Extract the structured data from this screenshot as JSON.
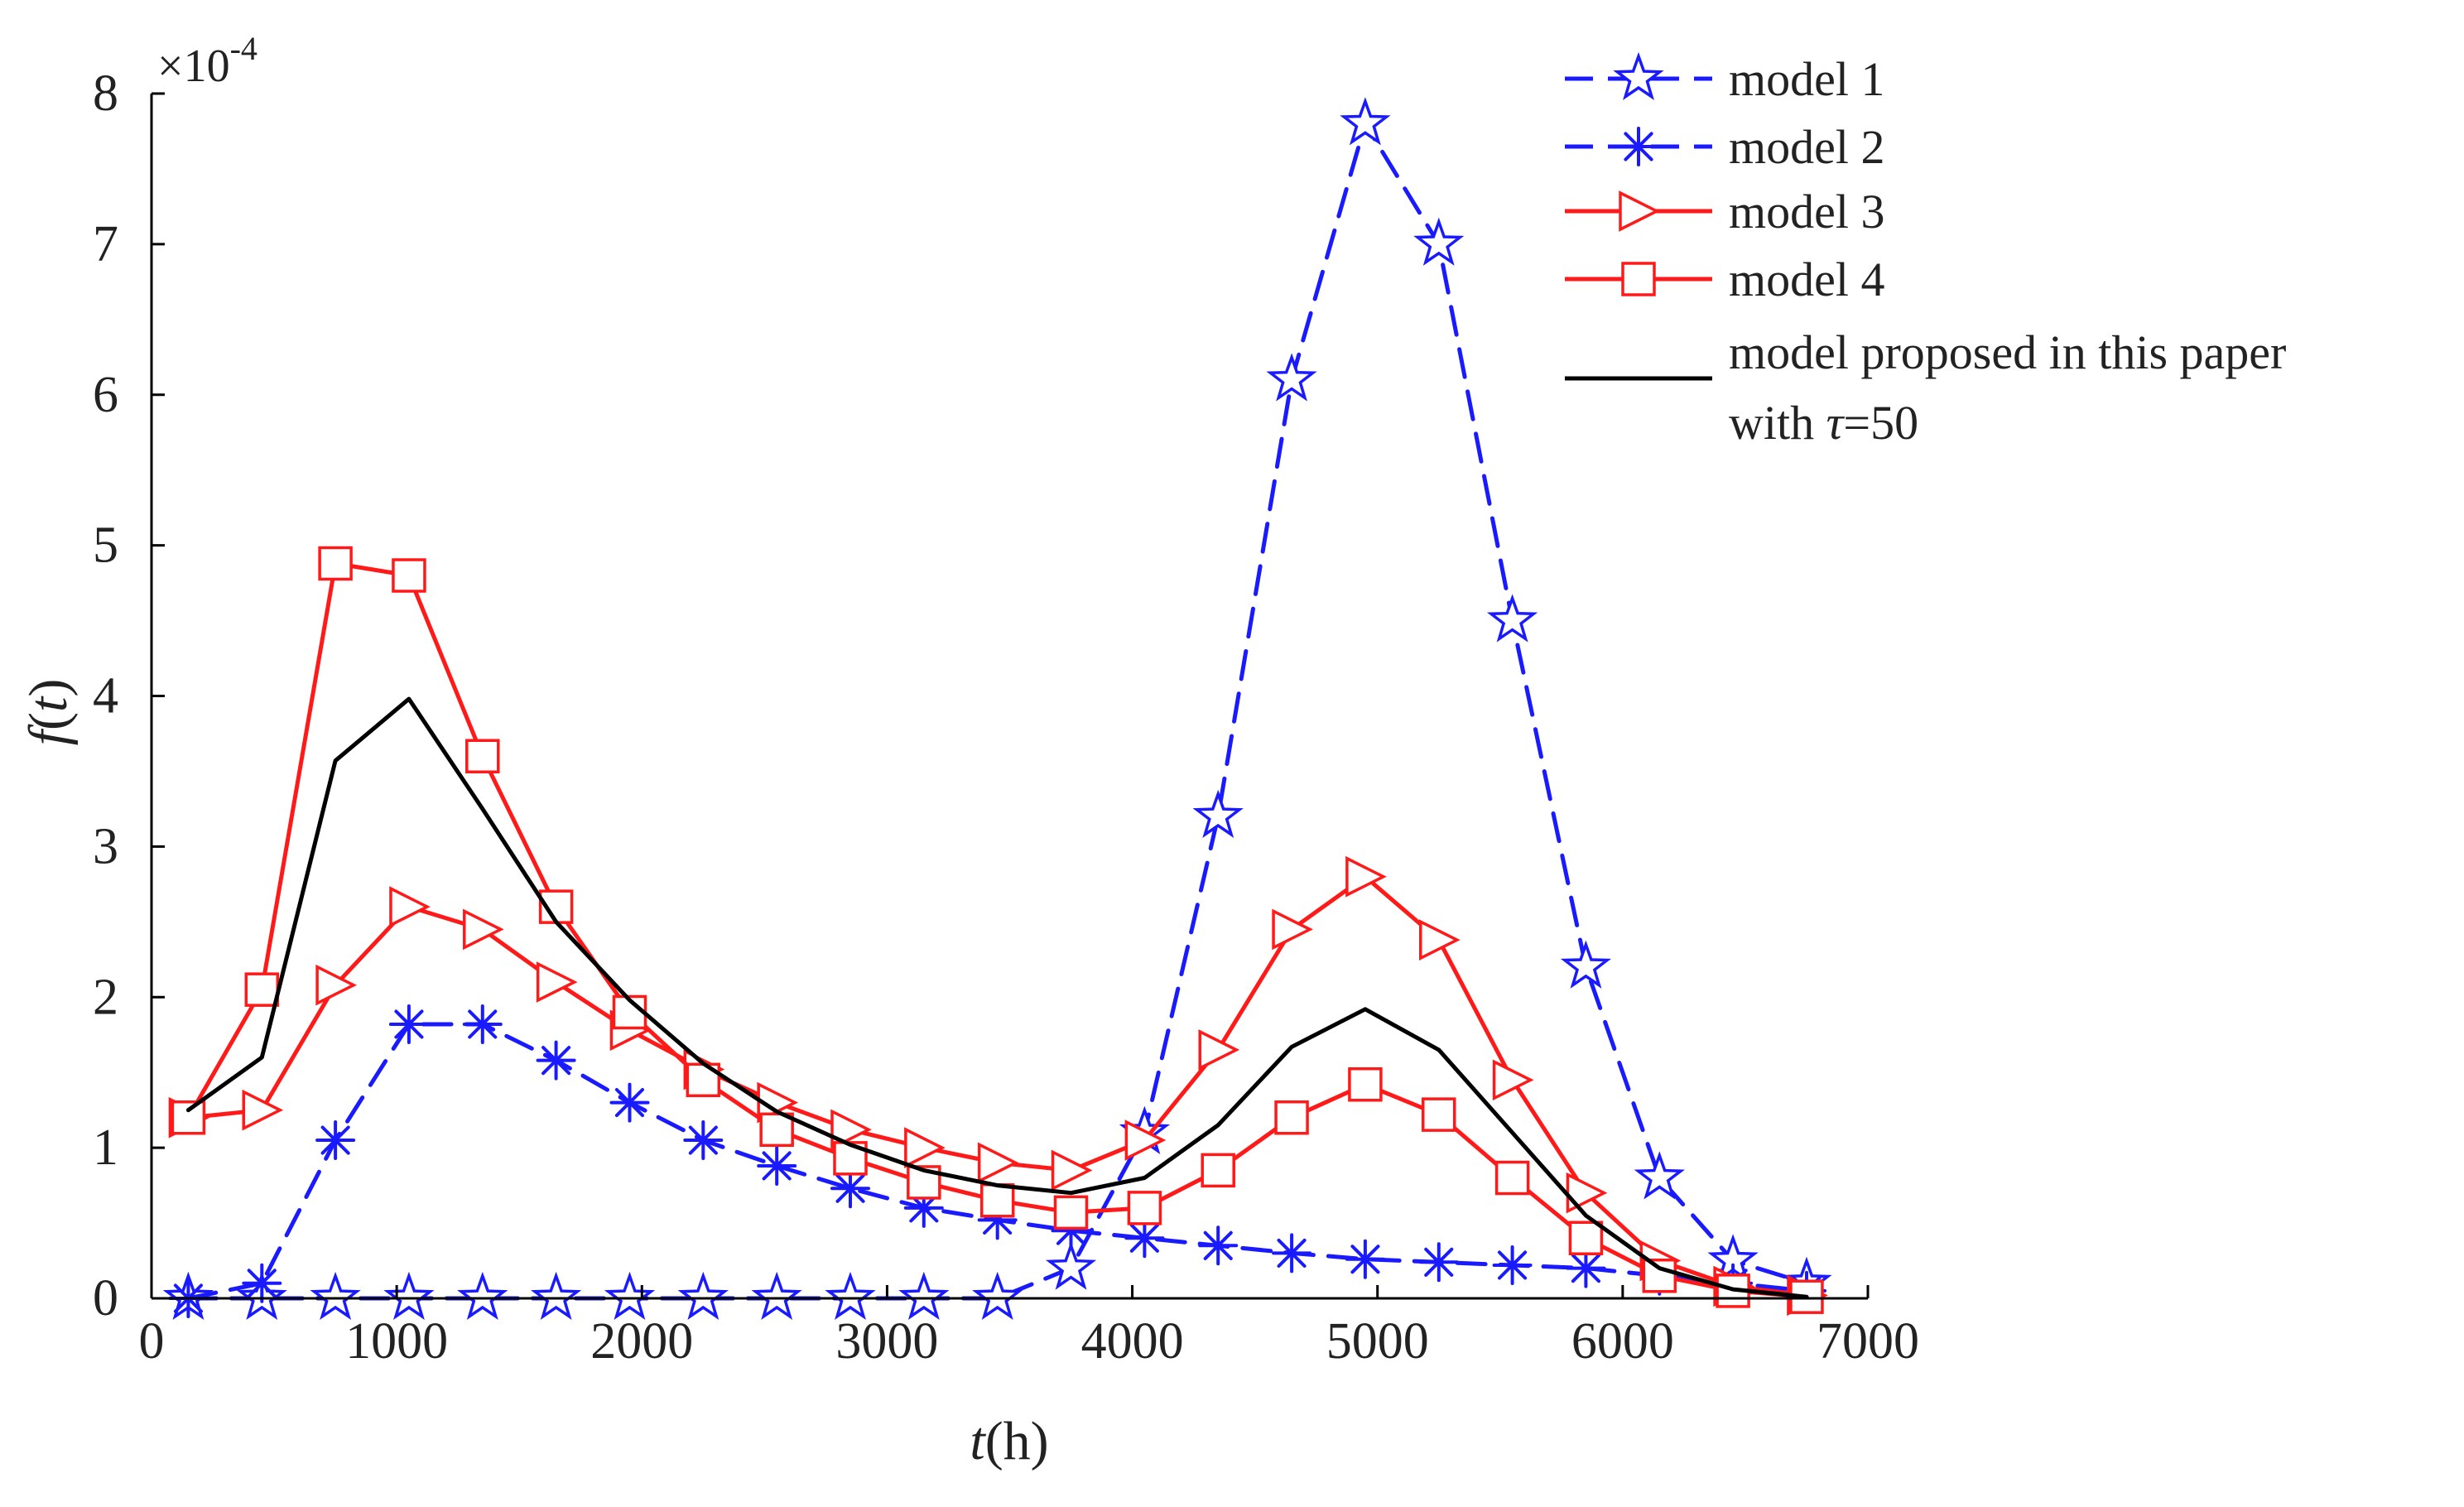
{
  "chart_data": {
    "type": "line",
    "title": "",
    "xlabel": {
      "italic": "t",
      "rest": "(h)"
    },
    "ylabel": {
      "italic_f": "f",
      "open": "(",
      "italic_t": "t",
      "close": ")"
    },
    "y_multiplier": {
      "base": "×10",
      "exp": "-4"
    },
    "xlim": [
      0,
      7000
    ],
    "ylim": [
      0,
      8
    ],
    "xticks": [
      0,
      1000,
      2000,
      3000,
      4000,
      5000,
      6000,
      7000
    ],
    "yticks": [
      0,
      1,
      2,
      3,
      4,
      5,
      6,
      7,
      8
    ],
    "grid": false,
    "legend_position": "top-right",
    "series": [
      {
        "name": "model 1",
        "color": "#1a1aff",
        "dash": "dashed",
        "marker": "star",
        "x": [
          150,
          450,
          750,
          1050,
          1350,
          1650,
          1950,
          2250,
          2550,
          2850,
          3150,
          3450,
          3750,
          4050,
          4350,
          4650,
          4950,
          5250,
          5550,
          5850,
          6150,
          6450,
          6750
        ],
        "values": [
          0,
          0,
          0,
          0,
          0,
          0,
          0,
          0,
          0,
          0,
          0,
          0,
          0.2,
          1.1,
          3.2,
          6.1,
          7.8,
          7.0,
          4.5,
          2.2,
          0.8,
          0.25,
          0.1
        ]
      },
      {
        "name": "model 2",
        "color": "#1a1aff",
        "dash": "dashed",
        "marker": "asterisk",
        "x": [
          150,
          450,
          750,
          1050,
          1350,
          1650,
          1950,
          2250,
          2550,
          2850,
          3150,
          3450,
          3750,
          4050,
          4350,
          4650,
          4950,
          5250,
          5550,
          5850,
          6150,
          6450,
          6750
        ],
        "values": [
          0,
          0.1,
          1.05,
          1.82,
          1.82,
          1.58,
          1.3,
          1.05,
          0.88,
          0.73,
          0.6,
          0.52,
          0.45,
          0.4,
          0.35,
          0.3,
          0.26,
          0.24,
          0.22,
          0.2,
          0.15,
          0.1,
          0.05
        ]
      },
      {
        "name": "model 3",
        "color": "#ff1a1a",
        "dash": "solid",
        "marker": "triangle-right",
        "x": [
          150,
          450,
          750,
          1050,
          1350,
          1650,
          1950,
          2250,
          2550,
          2850,
          3150,
          3450,
          3750,
          4050,
          4350,
          4650,
          4950,
          5250,
          5550,
          5850,
          6150,
          6450,
          6750
        ],
        "values": [
          1.2,
          1.25,
          2.08,
          2.6,
          2.45,
          2.1,
          1.78,
          1.52,
          1.3,
          1.12,
          1.0,
          0.9,
          0.85,
          1.05,
          1.65,
          2.45,
          2.8,
          2.38,
          1.45,
          0.7,
          0.25,
          0.08,
          0.02
        ]
      },
      {
        "name": "model 4",
        "color": "#ff1a1a",
        "dash": "solid",
        "marker": "square",
        "x": [
          150,
          450,
          750,
          1050,
          1350,
          1650,
          1950,
          2250,
          2550,
          2850,
          3150,
          3450,
          3750,
          4050,
          4350,
          4650,
          4950,
          5250,
          5550,
          5850,
          6150,
          6450,
          6750
        ],
        "values": [
          1.2,
          2.05,
          4.88,
          4.8,
          3.6,
          2.6,
          1.9,
          1.45,
          1.12,
          0.93,
          0.77,
          0.65,
          0.57,
          0.6,
          0.85,
          1.2,
          1.42,
          1.22,
          0.8,
          0.4,
          0.15,
          0.05,
          0.01
        ]
      },
      {
        "name": "model proposed in this paper",
        "name_line2": {
          "prefix": "with ",
          "symbol": "τ",
          "suffix": "=50"
        },
        "color": "#000000",
        "dash": "solid",
        "marker": "none",
        "x": [
          150,
          450,
          750,
          1050,
          1350,
          1650,
          1950,
          2250,
          2550,
          2850,
          3150,
          3450,
          3750,
          4050,
          4350,
          4650,
          4950,
          5250,
          5550,
          5850,
          6150,
          6450,
          6750
        ],
        "values": [
          1.25,
          1.6,
          3.57,
          3.98,
          3.25,
          2.5,
          1.98,
          1.56,
          1.24,
          1.02,
          0.85,
          0.75,
          0.7,
          0.8,
          1.15,
          1.67,
          1.92,
          1.65,
          1.1,
          0.55,
          0.2,
          0.06,
          0.01
        ]
      }
    ]
  }
}
